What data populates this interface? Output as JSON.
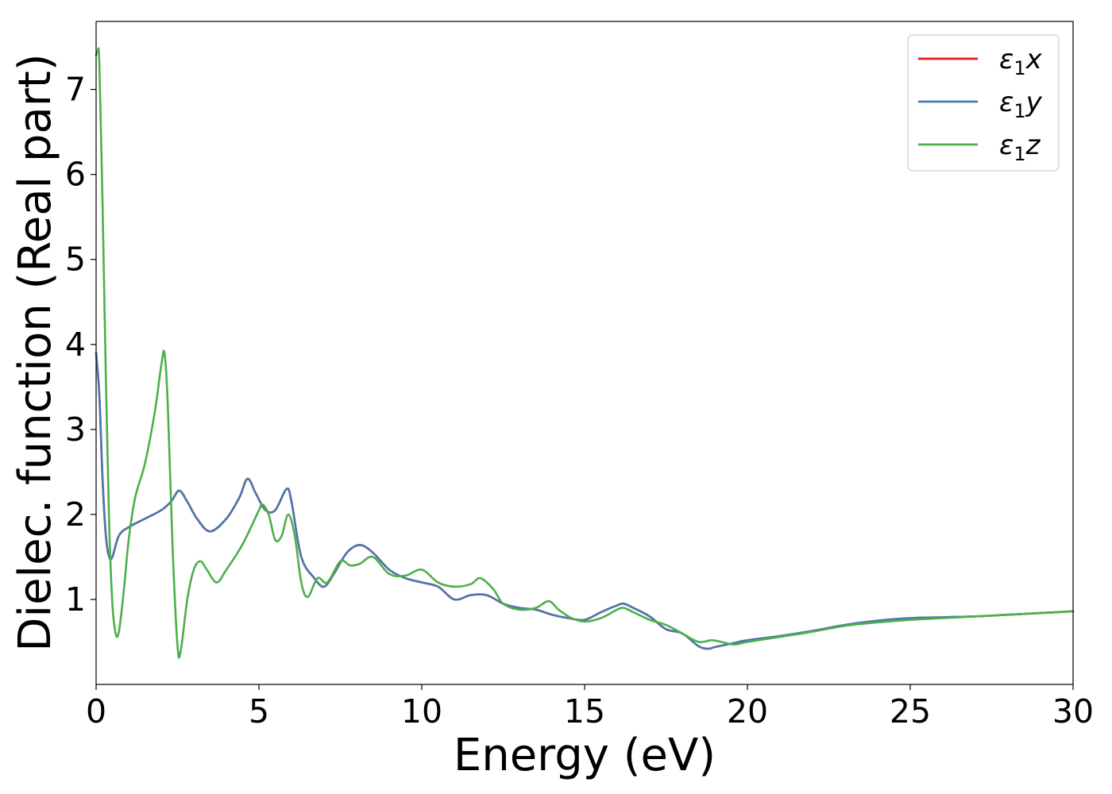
{
  "chart_data": {
    "type": "line",
    "title": "",
    "xlabel": "Energy (eV)",
    "ylabel": "Dielec. function (Real part)",
    "xlim": [
      0,
      30
    ],
    "ylim": [
      0,
      7.8
    ],
    "xticks": [
      0,
      5,
      10,
      15,
      20,
      25,
      30
    ],
    "xtick_labels": [
      "0",
      "5",
      "10",
      "15",
      "20",
      "25",
      "30"
    ],
    "yticks": [
      1,
      2,
      3,
      4,
      5,
      6,
      7
    ],
    "ytick_labels": [
      "1",
      "2",
      "3",
      "4",
      "5",
      "6",
      "7"
    ],
    "grid": false,
    "legend_position": "top-right",
    "series": [
      {
        "name": "ε1x",
        "legend_base": "ε",
        "legend_sub": "1",
        "legend_var": "x",
        "color": "#e41a1c",
        "x": [
          0,
          0.1,
          0.2,
          0.3,
          0.4,
          0.5,
          0.7,
          1.0,
          1.5,
          2.0,
          2.3,
          2.55,
          2.8,
          3.1,
          3.5,
          4.0,
          4.4,
          4.65,
          4.9,
          5.2,
          5.5,
          5.85,
          6.0,
          6.3,
          6.7,
          7.0,
          7.3,
          7.7,
          8.1,
          8.5,
          9.0,
          9.5,
          10.0,
          10.5,
          11.0,
          11.5,
          12.0,
          12.5,
          13.0,
          13.5,
          14.0,
          14.5,
          15.0,
          15.5,
          16.0,
          16.2,
          16.5,
          17.0,
          17.5,
          18.0,
          18.5,
          18.8,
          19.0,
          19.5,
          20.0,
          21.0,
          22.0,
          23.0,
          24.0,
          25.0,
          26.0,
          27.0,
          28.0,
          29.0,
          30.0
        ],
        "y": [
          3.9,
          3.4,
          2.4,
          1.75,
          1.5,
          1.5,
          1.75,
          1.85,
          1.95,
          2.05,
          2.15,
          2.28,
          2.15,
          1.95,
          1.8,
          1.95,
          2.2,
          2.42,
          2.25,
          2.05,
          2.05,
          2.3,
          2.15,
          1.5,
          1.25,
          1.15,
          1.3,
          1.55,
          1.64,
          1.55,
          1.35,
          1.25,
          1.2,
          1.15,
          1.0,
          1.05,
          1.05,
          0.95,
          0.9,
          0.88,
          0.82,
          0.78,
          0.76,
          0.85,
          0.93,
          0.95,
          0.9,
          0.8,
          0.65,
          0.6,
          0.45,
          0.42,
          0.44,
          0.48,
          0.52,
          0.57,
          0.63,
          0.7,
          0.75,
          0.78,
          0.79,
          0.8,
          0.82,
          0.84,
          0.86
        ]
      },
      {
        "name": "ε1y",
        "legend_base": "ε",
        "legend_sub": "1",
        "legend_var": "y",
        "color": "#4a78ae",
        "x": [
          0,
          0.1,
          0.2,
          0.3,
          0.4,
          0.5,
          0.7,
          1.0,
          1.5,
          2.0,
          2.3,
          2.55,
          2.8,
          3.1,
          3.5,
          4.0,
          4.4,
          4.65,
          4.9,
          5.2,
          5.5,
          5.85,
          6.0,
          6.3,
          6.7,
          7.0,
          7.3,
          7.7,
          8.1,
          8.5,
          9.0,
          9.5,
          10.0,
          10.5,
          11.0,
          11.5,
          12.0,
          12.5,
          13.0,
          13.5,
          14.0,
          14.5,
          15.0,
          15.5,
          16.0,
          16.2,
          16.5,
          17.0,
          17.5,
          18.0,
          18.5,
          18.8,
          19.0,
          19.5,
          20.0,
          21.0,
          22.0,
          23.0,
          24.0,
          25.0,
          26.0,
          27.0,
          28.0,
          29.0,
          30.0
        ],
        "y": [
          3.9,
          3.4,
          2.4,
          1.75,
          1.5,
          1.5,
          1.75,
          1.85,
          1.95,
          2.05,
          2.15,
          2.28,
          2.15,
          1.95,
          1.8,
          1.95,
          2.2,
          2.42,
          2.25,
          2.05,
          2.05,
          2.3,
          2.15,
          1.5,
          1.25,
          1.15,
          1.3,
          1.55,
          1.64,
          1.55,
          1.35,
          1.25,
          1.2,
          1.15,
          1.0,
          1.05,
          1.05,
          0.95,
          0.9,
          0.88,
          0.82,
          0.78,
          0.76,
          0.85,
          0.93,
          0.95,
          0.9,
          0.8,
          0.65,
          0.6,
          0.45,
          0.42,
          0.44,
          0.48,
          0.52,
          0.57,
          0.63,
          0.7,
          0.75,
          0.78,
          0.79,
          0.8,
          0.82,
          0.84,
          0.86
        ]
      },
      {
        "name": "ε1z",
        "legend_base": "ε",
        "legend_sub": "1",
        "legend_var": "z",
        "color": "#4daf4a",
        "x": [
          0,
          0.05,
          0.1,
          0.2,
          0.3,
          0.4,
          0.5,
          0.6,
          0.7,
          0.85,
          1.0,
          1.2,
          1.5,
          1.8,
          2.0,
          2.1,
          2.2,
          2.35,
          2.5,
          2.6,
          2.8,
          3.0,
          3.2,
          3.4,
          3.7,
          4.0,
          4.5,
          5.0,
          5.1,
          5.3,
          5.5,
          5.7,
          5.9,
          6.1,
          6.3,
          6.5,
          6.8,
          7.1,
          7.5,
          7.8,
          8.1,
          8.5,
          9.0,
          9.5,
          10.0,
          10.5,
          11.0,
          11.5,
          11.8,
          12.2,
          12.5,
          13.0,
          13.5,
          13.9,
          14.2,
          14.6,
          15.0,
          15.5,
          16.0,
          16.2,
          16.5,
          17.0,
          17.5,
          18.0,
          18.5,
          18.9,
          19.2,
          19.6,
          20.0,
          21.0,
          22.0,
          23.0,
          24.0,
          25.0,
          26.0,
          27.0,
          28.0,
          29.0,
          30.0
        ],
        "y": [
          7.4,
          7.45,
          7.3,
          5.6,
          3.6,
          1.9,
          0.95,
          0.6,
          0.62,
          1.1,
          1.7,
          2.2,
          2.6,
          3.2,
          3.75,
          3.9,
          3.3,
          1.6,
          0.45,
          0.4,
          1.0,
          1.35,
          1.45,
          1.35,
          1.2,
          1.35,
          1.65,
          2.05,
          2.12,
          2.0,
          1.7,
          1.75,
          2.0,
          1.75,
          1.2,
          1.03,
          1.25,
          1.2,
          1.45,
          1.4,
          1.42,
          1.5,
          1.3,
          1.28,
          1.35,
          1.2,
          1.15,
          1.18,
          1.25,
          1.12,
          0.95,
          0.88,
          0.9,
          0.98,
          0.88,
          0.78,
          0.74,
          0.78,
          0.88,
          0.9,
          0.85,
          0.76,
          0.7,
          0.6,
          0.5,
          0.52,
          0.5,
          0.47,
          0.5,
          0.56,
          0.62,
          0.69,
          0.73,
          0.76,
          0.78,
          0.8,
          0.82,
          0.84,
          0.86
        ]
      }
    ]
  }
}
